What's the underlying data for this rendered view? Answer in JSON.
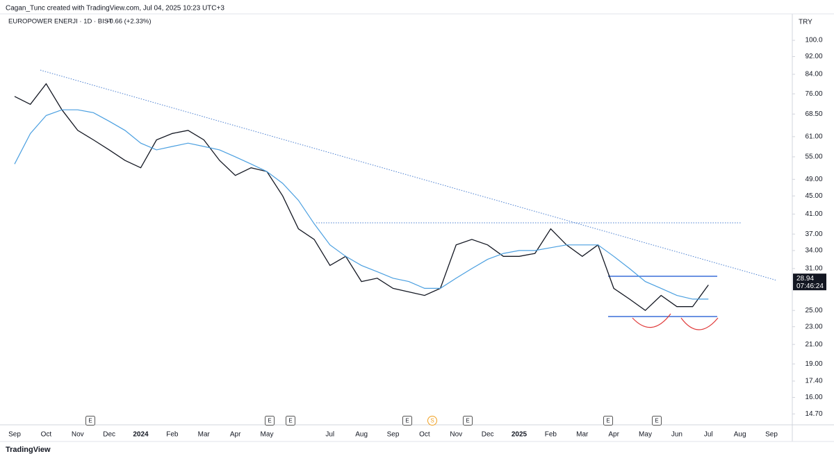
{
  "header": {
    "credit": "Cagan_Tunc created with TradingView.com, Jul 04, 2025 10:23 UTC+3",
    "symbol": "EUROPOWER ENERJI · 1D · BIST",
    "change": "+0.66 (+2.33%)",
    "currency": "TRY",
    "logo": "TradingView"
  },
  "chart_data": {
    "type": "line",
    "log_scale": true,
    "categories": [
      "Sep",
      null,
      "Oct",
      null,
      "Nov",
      null,
      "Dec",
      null,
      "2024",
      null,
      "Feb",
      null,
      "Mar",
      null,
      "Apr",
      null,
      "May",
      null,
      null,
      null,
      "Jul",
      null,
      "Aug",
      null,
      "Sep",
      null,
      "Oct",
      null,
      "Nov",
      null,
      "Dec",
      null,
      "2025",
      null,
      "Feb",
      null,
      "Mar",
      null,
      "Apr",
      null,
      "May",
      null,
      "Jun",
      null,
      "Jul",
      null,
      "Aug",
      null,
      "Sep"
    ],
    "series": [
      {
        "color": "#131722",
        "values": [
          75,
          72,
          80,
          70,
          63,
          60,
          57,
          54,
          52,
          60,
          62,
          63,
          60,
          54,
          50,
          52,
          51,
          45,
          38,
          36,
          31.5,
          33,
          29,
          29.5,
          28,
          27.5,
          27,
          28,
          35,
          36,
          35,
          33,
          33,
          33.5,
          38,
          35,
          33,
          35,
          28,
          26.5,
          25,
          27,
          25.5,
          25.5,
          28.5,
          null,
          null,
          null,
          null
        ]
      },
      {
        "color": "#4a9fe0",
        "values": [
          53,
          62,
          68,
          70,
          70,
          69,
          66,
          63,
          59,
          57,
          58,
          59,
          58,
          57,
          55,
          53,
          51,
          48,
          44,
          39,
          35,
          33,
          31.5,
          30.5,
          29.5,
          29,
          28,
          28,
          29.5,
          31,
          32.5,
          33.5,
          34,
          34,
          34.5,
          35,
          35,
          35,
          33,
          31,
          29,
          28,
          27,
          26.5,
          26.5,
          null,
          null,
          null,
          null
        ]
      }
    ],
    "ylim": [
      13.9,
      116.6
    ],
    "yticks": [
      {
        "value": 100,
        "label": "100.0"
      },
      {
        "value": 92,
        "label": "92.00"
      },
      {
        "value": 84,
        "label": "84.00"
      },
      {
        "value": 76,
        "label": "76.00"
      },
      {
        "value": 68.5,
        "label": "68.50"
      },
      {
        "value": 61,
        "label": "61.00"
      },
      {
        "value": 55,
        "label": "55.00"
      },
      {
        "value": 49,
        "label": "49.00"
      },
      {
        "value": 45,
        "label": "45.00"
      },
      {
        "value": 41,
        "label": "41.00"
      },
      {
        "value": 37,
        "label": "37.00"
      },
      {
        "value": 34,
        "label": "34.00"
      },
      {
        "value": 31,
        "label": "31.00"
      },
      {
        "value": 25,
        "label": "25.00"
      },
      {
        "value": 23,
        "label": "23.00"
      },
      {
        "value": 21,
        "label": "21.00"
      },
      {
        "value": 19,
        "label": "19.00"
      },
      {
        "value": 17.4,
        "label": "17.40"
      },
      {
        "value": 16,
        "label": "16.00"
      },
      {
        "value": 14.7,
        "label": "14.70"
      }
    ],
    "last_price": 28.94,
    "countdown": "07:46:24",
    "events": [
      "E",
      "E",
      "E",
      "E",
      "S",
      "E",
      "E",
      "E"
    ]
  }
}
